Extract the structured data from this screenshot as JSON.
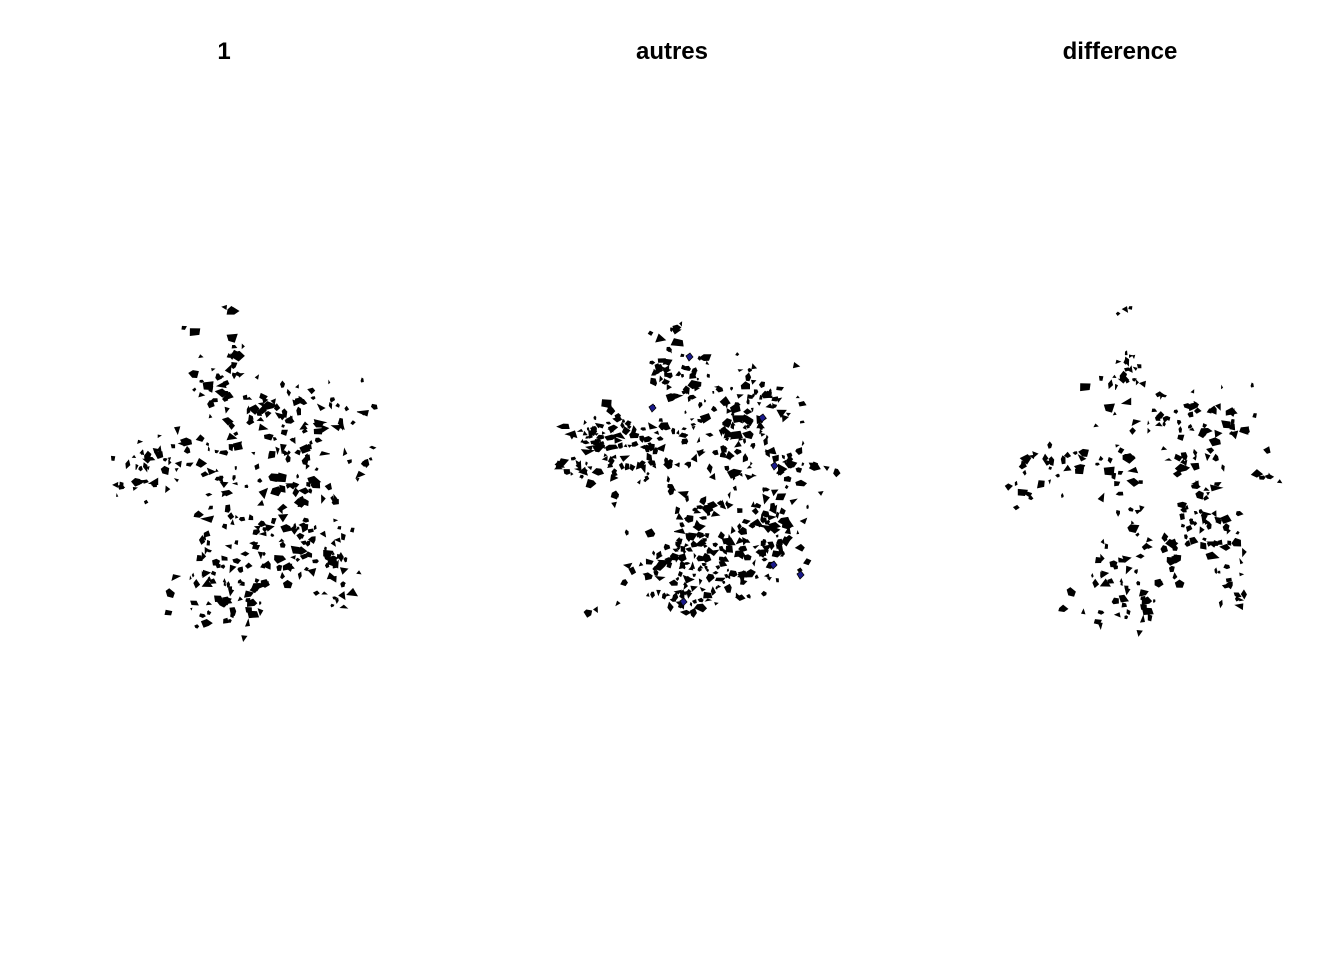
{
  "panels": [
    {
      "title": "1"
    },
    {
      "title": "autres"
    },
    {
      "title": "difference"
    }
  ],
  "colors": {
    "background": "#ffffff",
    "polygon_fill": "#000000",
    "polygon_outline": "#000000",
    "highlight_fill": "#1a1a8c",
    "title_text": "#000000"
  }
}
